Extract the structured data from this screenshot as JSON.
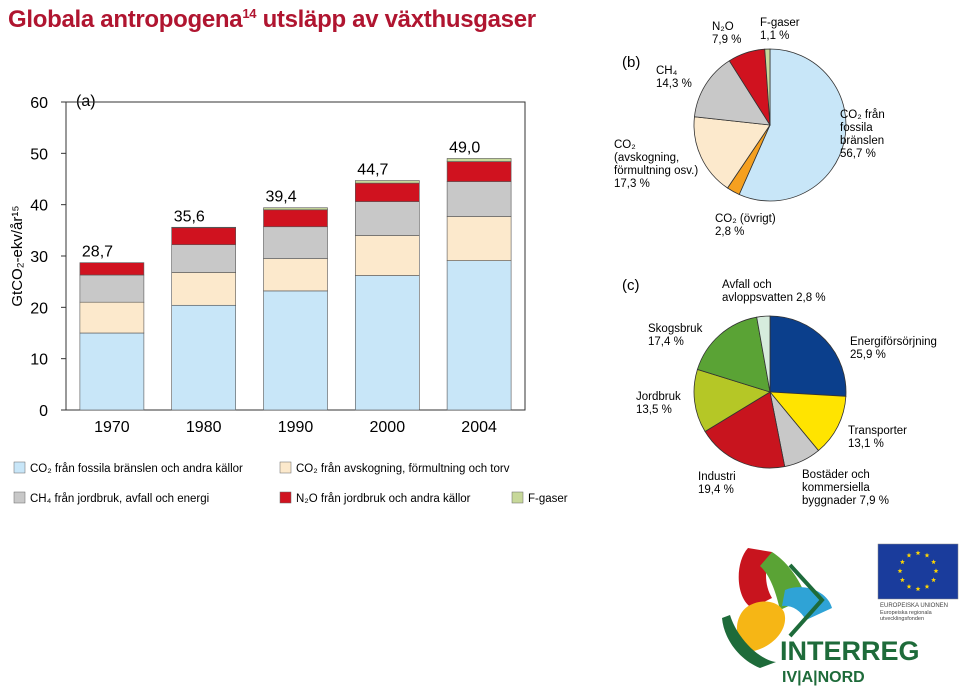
{
  "page": {
    "title": "Globala antropogena",
    "title_sup": "14",
    "title_rest": " utsläpp av växthusgaser"
  },
  "colors": {
    "title": "#b01530",
    "co2_fossil": "#c8e6f8",
    "co2_forest": "#fce9cc",
    "ch4": "#c8c8c8",
    "n2o": "#d0121f",
    "fgas": "#c7d89a",
    "pie_orange": "#f5a020",
    "energy": "#0b3f8c",
    "transport": "#ffe400",
    "buildings": "#c8c8c8",
    "industry": "#c8141e",
    "agriculture": "#b5c726",
    "forestry": "#5aa335",
    "waste": "#d6ecdd"
  },
  "chart_data": [
    {
      "type": "bar",
      "panel_label": "(a)",
      "ylabel": "GtCO₂-ekv/år¹⁵",
      "ylim": [
        0,
        60
      ],
      "yticks": [
        0,
        10,
        20,
        30,
        40,
        50,
        60
      ],
      "categories": [
        "1970",
        "1980",
        "1990",
        "2000",
        "2004"
      ],
      "totals": [
        "28,7",
        "35,6",
        "39,4",
        "44,7",
        "49,0"
      ],
      "series": [
        {
          "name": "CO₂ från fossila bränslen och andra källor",
          "color": "#c8e6f8",
          "values": [
            15.0,
            20.4,
            23.2,
            26.2,
            29.1
          ]
        },
        {
          "name": "CO₂ från avskogning, förmultning och torv",
          "color": "#fce9cc",
          "values": [
            6.0,
            6.4,
            6.3,
            7.8,
            8.6
          ]
        },
        {
          "name": "CH₄ från jordbruk, avfall och energi",
          "color": "#c8c8c8",
          "values": [
            5.3,
            5.4,
            6.2,
            6.6,
            6.8
          ]
        },
        {
          "name": "N₂O från jordbruk och andra källor",
          "color": "#d0121f",
          "values": [
            2.4,
            3.3,
            3.3,
            3.6,
            3.9
          ]
        },
        {
          "name": "F-gaser",
          "color": "#c7d89a",
          "values": [
            0.0,
            0.1,
            0.4,
            0.5,
            0.6
          ]
        }
      ]
    },
    {
      "type": "pie",
      "panel_label": "(b)",
      "slices": [
        {
          "name": "CO₂ från fossila bränslen",
          "value": 56.7,
          "label": [
            "CO₂ från",
            "fossila",
            "bränslen",
            "56,7 %"
          ],
          "color": "#c8e6f8"
        },
        {
          "name": "CO₂ (övrigt)",
          "value": 2.8,
          "label": [
            "CO₂ (övrigt)",
            "2,8 %"
          ],
          "color": "#f5a020"
        },
        {
          "name": "CO₂ (avskogning, förmultning osv.)",
          "value": 17.3,
          "label": [
            "CO₂",
            "(avskogning,",
            "förmultning osv.)",
            "17,3 %"
          ],
          "color": "#fce9cc"
        },
        {
          "name": "CH₄",
          "value": 14.3,
          "label": [
            "CH₄",
            "14,3 %"
          ],
          "color": "#c8c8c8"
        },
        {
          "name": "N₂O",
          "value": 7.9,
          "label": [
            "N₂O",
            "7,9 %"
          ],
          "color": "#d0121f"
        },
        {
          "name": "F-gaser",
          "value": 1.1,
          "label": [
            "F-gaser",
            "1,1 %"
          ],
          "color": "#c7d89a"
        }
      ]
    },
    {
      "type": "pie",
      "panel_label": "(c)",
      "slices": [
        {
          "name": "Energiförsörjning",
          "value": 25.9,
          "label": [
            "Energiförsörjning",
            "25,9 %"
          ],
          "color": "#0b3f8c"
        },
        {
          "name": "Transporter",
          "value": 13.1,
          "label": [
            "Transporter",
            "13,1 %"
          ],
          "color": "#ffe400"
        },
        {
          "name": "Bostäder och kommersiella byggnader",
          "value": 7.9,
          "label": [
            "Bostäder och",
            "kommersiella",
            "byggnader 7,9 %"
          ],
          "color": "#c8c8c8"
        },
        {
          "name": "Industri",
          "value": 19.4,
          "label": [
            "Industri",
            "19,4 %"
          ],
          "color": "#c8141e"
        },
        {
          "name": "Jordbruk",
          "value": 13.5,
          "label": [
            "Jordbruk",
            "13,5 %"
          ],
          "color": "#b5c726"
        },
        {
          "name": "Skogsbruk",
          "value": 17.4,
          "label": [
            "Skogsbruk",
            "17,4 %"
          ],
          "color": "#5aa335"
        },
        {
          "name": "Avfall och avloppsvatten",
          "value": 2.8,
          "label": [
            "Avfall och",
            "avloppsvatten 2,8 %"
          ],
          "color": "#d6ecdd"
        }
      ]
    }
  ],
  "logos": {
    "interreg_name": "INTERREG",
    "interreg_sub": "IV|A|NORD",
    "eu_caption": [
      "EUROPEISKA UNIONEN",
      "Europeiska regionala",
      "utvecklingsfonden"
    ]
  }
}
